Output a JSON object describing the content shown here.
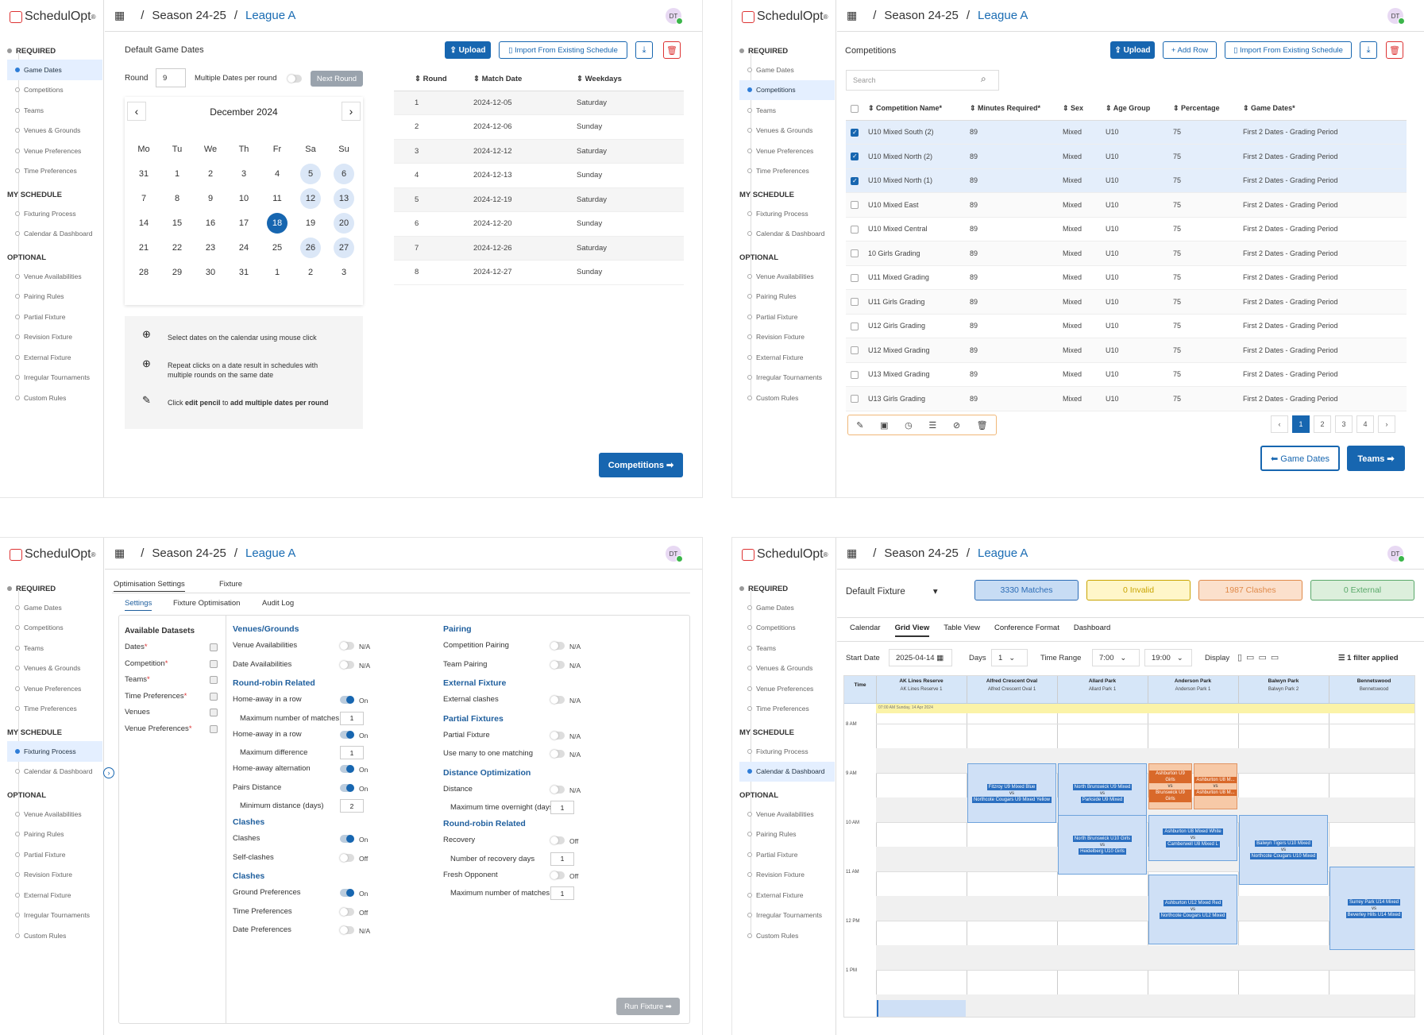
{
  "app": {
    "logo": "SchedulOpt",
    "reg": "®",
    "season": "Season 24-25",
    "league": "League A",
    "avatar": "DT"
  },
  "nav": {
    "required": "REQUIRED",
    "required_items": [
      "Game Dates",
      "Competitions",
      "Teams",
      "Venues & Grounds",
      "Venue Preferences",
      "Time Preferences"
    ],
    "my_schedule": "MY SCHEDULE",
    "my_items": [
      "Fixturing Process",
      "Calendar & Dashboard"
    ],
    "optional": "OPTIONAL",
    "optional_items": [
      "Venue Availabilities",
      "Pairing Rules",
      "Partial Fixture",
      "Revision Fixture",
      "External Fixture",
      "Irregular Tournaments",
      "Custom Rules"
    ]
  },
  "p1": {
    "title": "Default Game Dates",
    "upload": "Upload",
    "import": "Import From Existing Schedule",
    "round_label": "Round",
    "round_value": "9",
    "multi_label": "Multiple Dates per round",
    "next_round": "Next Round",
    "month": "December 2024",
    "weekdays": [
      "Mo",
      "Tu",
      "We",
      "Th",
      "Fr",
      "Sa",
      "Su"
    ],
    "days": [
      "31",
      "1",
      "2",
      "3",
      "4",
      "5",
      "6",
      "7",
      "8",
      "9",
      "10",
      "11",
      "12",
      "13",
      "14",
      "15",
      "16",
      "17",
      "18",
      "19",
      "20",
      "21",
      "22",
      "23",
      "24",
      "25",
      "26",
      "27",
      "28",
      "29",
      "30",
      "31",
      "1",
      "2",
      "3"
    ],
    "tips": [
      "Select dates on the calendar using mouse click",
      "Repeat clicks on a date result in schedules with multiple rounds on the same date"
    ],
    "tip3_pre": "Click ",
    "tip3_b1": "edit pencil",
    "tip3_mid": " to ",
    "tip3_b2": "add multiple dates per round",
    "col_round": "Round",
    "col_date": "Match Date",
    "col_weekday": "Weekdays",
    "rows": [
      [
        "1",
        "2024-12-05",
        "Saturday"
      ],
      [
        "2",
        "2024-12-06",
        "Sunday"
      ],
      [
        "3",
        "2024-12-12",
        "Saturday"
      ],
      [
        "4",
        "2024-12-13",
        "Sunday"
      ],
      [
        "5",
        "2024-12-19",
        "Saturday"
      ],
      [
        "6",
        "2024-12-20",
        "Sunday"
      ],
      [
        "7",
        "2024-12-26",
        "Saturday"
      ],
      [
        "8",
        "2024-12-27",
        "Sunday"
      ]
    ],
    "next": "Competitions ➡"
  },
  "p2": {
    "title": "Competitions",
    "upload": "Upload",
    "add_row": "+ Add Row",
    "import": "Import From Existing Schedule",
    "search_placeholder": "Search",
    "headers": [
      "Competition Name*",
      "Minutes Required*",
      "Sex",
      "Age Group",
      "Percentage",
      "Game Dates*"
    ],
    "rows": [
      [
        "U10 Mixed South (2)",
        "89",
        "Mixed",
        "U10",
        "75",
        "First 2 Dates - Grading Period"
      ],
      [
        "U10 Mixed North (2)",
        "89",
        "Mixed",
        "U10",
        "75",
        "First 2 Dates - Grading Period"
      ],
      [
        "U10 Mixed North (1)",
        "89",
        "Mixed",
        "U10",
        "75",
        "First 2 Dates - Grading Period"
      ],
      [
        "U10 Mixed East",
        "89",
        "Mixed",
        "U10",
        "75",
        "First 2 Dates - Grading Period"
      ],
      [
        "U10 Mixed Central",
        "89",
        "Mixed",
        "U10",
        "75",
        "First 2 Dates - Grading Period"
      ],
      [
        "10 Girls Grading",
        "89",
        "Mixed",
        "U10",
        "75",
        "First 2 Dates - Grading Period"
      ],
      [
        "U11 Mixed Grading",
        "89",
        "Mixed",
        "U10",
        "75",
        "First 2 Dates - Grading Period"
      ],
      [
        "U11 Girls Grading",
        "89",
        "Mixed",
        "U10",
        "75",
        "First 2 Dates - Grading Period"
      ],
      [
        "U12 Girls Grading",
        "89",
        "Mixed",
        "U10",
        "75",
        "First 2 Dates - Grading Period"
      ],
      [
        "U12 Mixed Grading",
        "89",
        "Mixed",
        "U10",
        "75",
        "First 2 Dates - Grading Period"
      ],
      [
        "U13 Mixed Grading",
        "89",
        "Mixed",
        "U10",
        "75",
        "First 2 Dates - Grading Period"
      ],
      [
        "U13 Girls Grading",
        "89",
        "Mixed",
        "U10",
        "75",
        "First 2 Dates - Grading Period"
      ]
    ],
    "checked": [
      true,
      true,
      true,
      false,
      false,
      false,
      false,
      false,
      false,
      false,
      false,
      false
    ],
    "pages": [
      "‹",
      "1",
      "2",
      "3",
      "4",
      "›"
    ],
    "prev": "⬅ Game Dates",
    "next": "Teams ➡"
  },
  "p3": {
    "tab1": "Optimisation Settings",
    "tab2": "Fixture",
    "sub1": "Settings",
    "sub2": "Fixture Optimisation",
    "sub3": "Audit Log",
    "datasets_title": "Available Datasets",
    "datasets": [
      "Dates",
      "Competition",
      "Teams",
      "Time Preferences",
      "Venues",
      "Venue Preferences"
    ],
    "req_marks": [
      "*",
      "*",
      "*",
      "*",
      "",
      "*"
    ],
    "col1": [
      {
        "h": "Venues/Grounds"
      },
      {
        "t": "Venue Availabilities",
        "s": "N/A",
        "on": false
      },
      {
        "t": "Date Availabilities",
        "s": "N/A",
        "on": false
      },
      {
        "h": "Round-robin Related"
      },
      {
        "t": "Home-away in a row",
        "s": "On",
        "on": true
      },
      {
        "t": "Maximum number of matches",
        "n": "1"
      },
      {
        "t": "Home-away in a row",
        "s": "On",
        "on": true
      },
      {
        "t": "Maximum difference",
        "n": "1"
      },
      {
        "t": "Home-away alternation",
        "s": "On",
        "on": true
      },
      {
        "t": "Pairs Distance",
        "s": "On",
        "on": true
      },
      {
        "t": "Minimum distance (days)",
        "n": "2"
      },
      {
        "h": "Clashes"
      },
      {
        "t": "Clashes",
        "s": "On",
        "on": true
      },
      {
        "t": "Self-clashes",
        "s": "Off",
        "on": false
      },
      {
        "h": "Clashes"
      },
      {
        "t": "Ground Preferences",
        "s": "On",
        "on": true
      },
      {
        "t": "Time Preferences",
        "s": "Off",
        "on": false
      },
      {
        "t": "Date Preferences",
        "s": "N/A",
        "on": false
      }
    ],
    "col2": [
      {
        "h": "Pairing"
      },
      {
        "t": "Competition Pairing",
        "s": "N/A",
        "on": false
      },
      {
        "t": "Team Pairing",
        "s": "N/A",
        "on": false
      },
      {
        "h": "External Fixture"
      },
      {
        "t": "External clashes",
        "s": "N/A",
        "on": false
      },
      {
        "h": "Partial Fixtures"
      },
      {
        "t": "Partial Fixture",
        "s": "N/A",
        "on": false
      },
      {
        "t": "Use many to one matching",
        "s": "N/A",
        "on": false
      },
      {
        "h": "Distance Optimization"
      },
      {
        "t": "Distance",
        "s": "N/A",
        "on": false
      },
      {
        "t": "Maximum time overnight (days)",
        "n": "1"
      },
      {
        "h": "Round-robin Related"
      },
      {
        "t": "Recovery",
        "s": "Off",
        "on": false
      },
      {
        "t": "Number of recovery days",
        "n": "1"
      },
      {
        "t": "Fresh Opponent",
        "s": "Off",
        "on": false
      },
      {
        "t": "Maximum number of matches",
        "n": "1"
      }
    ],
    "run": "Run Fixture ➡"
  },
  "p4": {
    "fixture": "Default Fixture",
    "stats": [
      {
        "t": "3330 Matches",
        "c": "#2b6cb6",
        "bg": "#c7dcf4"
      },
      {
        "t": "0 Invalid",
        "c": "#c9a400",
        "bg": "#fff6c9"
      },
      {
        "t": "1987 Clashes",
        "c": "#e08a4a",
        "bg": "#fbe0cc"
      },
      {
        "t": "0 External",
        "c": "#5aa86a",
        "bg": "#dcefdc"
      }
    ],
    "tabs": [
      "Calendar",
      "Grid View",
      "Table View",
      "Conference Format",
      "Dashboard"
    ],
    "start_label": "Start Date",
    "start_val": "2025-04-14",
    "days_label": "Days",
    "days_val": "1",
    "time_label": "Time Range",
    "time_from": "7:00",
    "time_to": "19:00",
    "display_label": "Display",
    "filter": "1 filter applied",
    "time_col": "Time",
    "venues": [
      [
        "AK Lines Reserve",
        "AK Lines Reserve 1"
      ],
      [
        "Alfred Crescent Oval",
        "Alfred Crescent Oval 1"
      ],
      [
        "Allard Park",
        "Allard Park 1"
      ],
      [
        "Anderson Park",
        "Anderson Park 1"
      ],
      [
        "Balwyn Park",
        "Balwyn Park 2"
      ],
      [
        "Bennetswood",
        "Bennetswood"
      ]
    ],
    "allday": "07:00 AM Sunday, 14 Apr 2024",
    "hours": [
      "8 AM",
      "9 AM",
      "10 AM",
      "11 AM",
      "12 PM",
      "1 PM"
    ],
    "matches": [
      {
        "a": "Fitzroy U9 Mixed Blue",
        "b": "Northcote Cougars U9 Mixed Yellow"
      },
      {
        "a": "North Brunswick U9 Mixed",
        "b": "Parkside U9 Mixed"
      },
      {
        "a": "Ashburton U9 Girls",
        "b": "Brunswick U9 Girls"
      },
      {
        "a": "Ashburton U8 M...",
        "b": "Ashburton U8 M..."
      },
      {
        "a": "North Brunswick U10 Girls",
        "b": "Heidelberg U10 Girls"
      },
      {
        "a": "Ashburton U8 Mixed White",
        "b": "Camberwell U8 Mixed L"
      },
      {
        "a": "Balwyn Tigers U10 Mixed",
        "b": "Northcote Cougars U10 Mixed"
      },
      {
        "a": "Ashburton U12 Mixed Red",
        "b": "Northcote Cougars U12 Mixed"
      },
      {
        "a": "Surrey Park U14 Mixed",
        "b": "Beverley Hills U14 Mixed"
      }
    ],
    "vs": "vs"
  }
}
